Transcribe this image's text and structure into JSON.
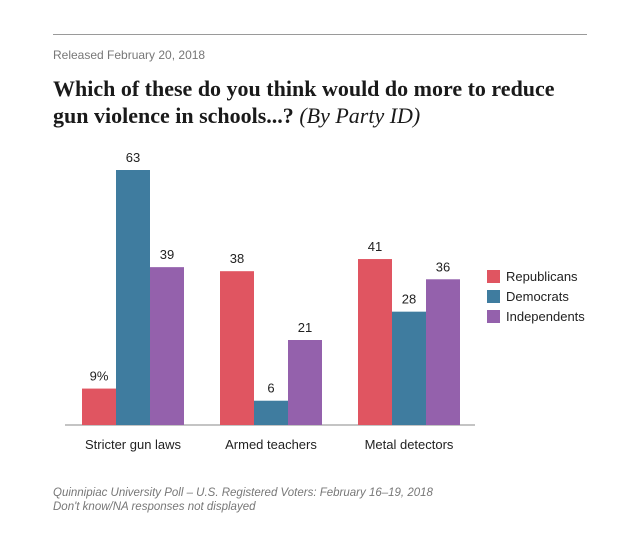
{
  "release_text": "Released February 20, 2018",
  "title_main": "Which of these do you think would do more to reduce gun violence in schools...?",
  "title_sub": "(By Party ID)",
  "chart_data": {
    "type": "bar",
    "categories": [
      "Stricter gun laws",
      "Armed teachers",
      "Metal detectors"
    ],
    "series": [
      {
        "name": "Republicans",
        "color": "#e05561",
        "values": [
          9,
          38,
          41
        ],
        "labels": [
          "9%",
          "38",
          "41"
        ]
      },
      {
        "name": "Democrats",
        "color": "#3f7c9f",
        "values": [
          63,
          6,
          28
        ],
        "labels": [
          "63",
          "6",
          "28"
        ]
      },
      {
        "name": "Independents",
        "color": "#9461ac",
        "values": [
          39,
          21,
          36
        ],
        "labels": [
          "39",
          "21",
          "36"
        ]
      }
    ],
    "ylim": [
      0,
      70
    ],
    "grid": false,
    "legend_position": "right"
  },
  "source_line1": "Quinnipiac University Poll – U.S. Registered Voters: February 16–19, 2018",
  "source_line2": "Don't know/NA responses not displayed"
}
